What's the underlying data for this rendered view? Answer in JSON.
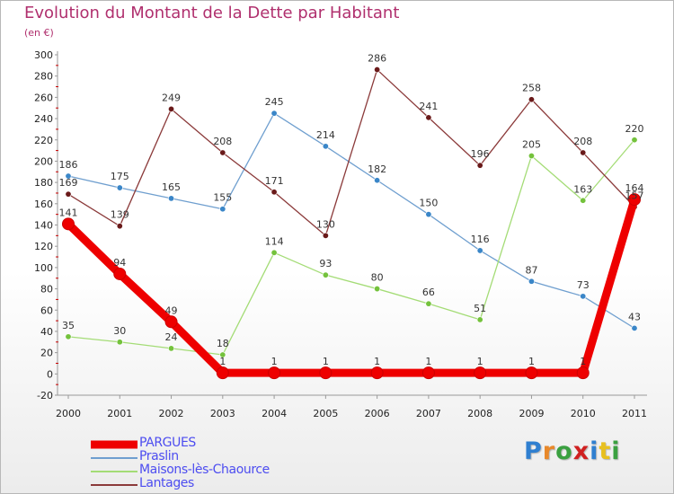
{
  "title": "Evolution du Montant de la Dette par Habitant",
  "unit": "(en €)",
  "logo": {
    "letters": [
      {
        "char": "P",
        "color": "#2f7fd0"
      },
      {
        "char": "r",
        "color": "#e8882a"
      },
      {
        "char": "o",
        "color": "#3aa040"
      },
      {
        "char": "x",
        "color": "#d02020"
      },
      {
        "char": "i",
        "color": "#2f7fd0"
      },
      {
        "char": "t",
        "color": "#e8c020"
      },
      {
        "char": "i",
        "color": "#3aa040"
      }
    ]
  },
  "chart_data": {
    "type": "line",
    "title": "Evolution du Montant de la Dette par Habitant",
    "unit": "(en €)",
    "categories": [
      "2000",
      "2001",
      "2002",
      "2003",
      "2004",
      "2005",
      "2006",
      "2007",
      "2008",
      "2009",
      "2010",
      "2011"
    ],
    "ylim": [
      -20,
      300
    ],
    "ytick_step": 20,
    "grid": false,
    "legend_position": "bottom-left",
    "series": [
      {
        "name": "PARGUES",
        "color": "#ee0000",
        "emphasis": true,
        "values": [
          141,
          94,
          49,
          1,
          1,
          1,
          1,
          1,
          1,
          1,
          1,
          164
        ]
      },
      {
        "name": "Praslin",
        "color": "#6f9fcf",
        "marker": "#3a86c8",
        "values": [
          186,
          175,
          165,
          155,
          245,
          214,
          182,
          150,
          116,
          87,
          73,
          43
        ]
      },
      {
        "name": "Maisons-lès-Chaource",
        "color": "#a4dc76",
        "marker": "#74c23c",
        "values": [
          35,
          30,
          24,
          18,
          114,
          93,
          80,
          66,
          51,
          205,
          163,
          220
        ]
      },
      {
        "name": "Lantages",
        "color": "#8b3a3a",
        "marker": "#6a1a1a",
        "values": [
          169,
          139,
          249,
          208,
          171,
          130,
          286,
          241,
          196,
          258,
          208,
          157
        ]
      }
    ]
  }
}
